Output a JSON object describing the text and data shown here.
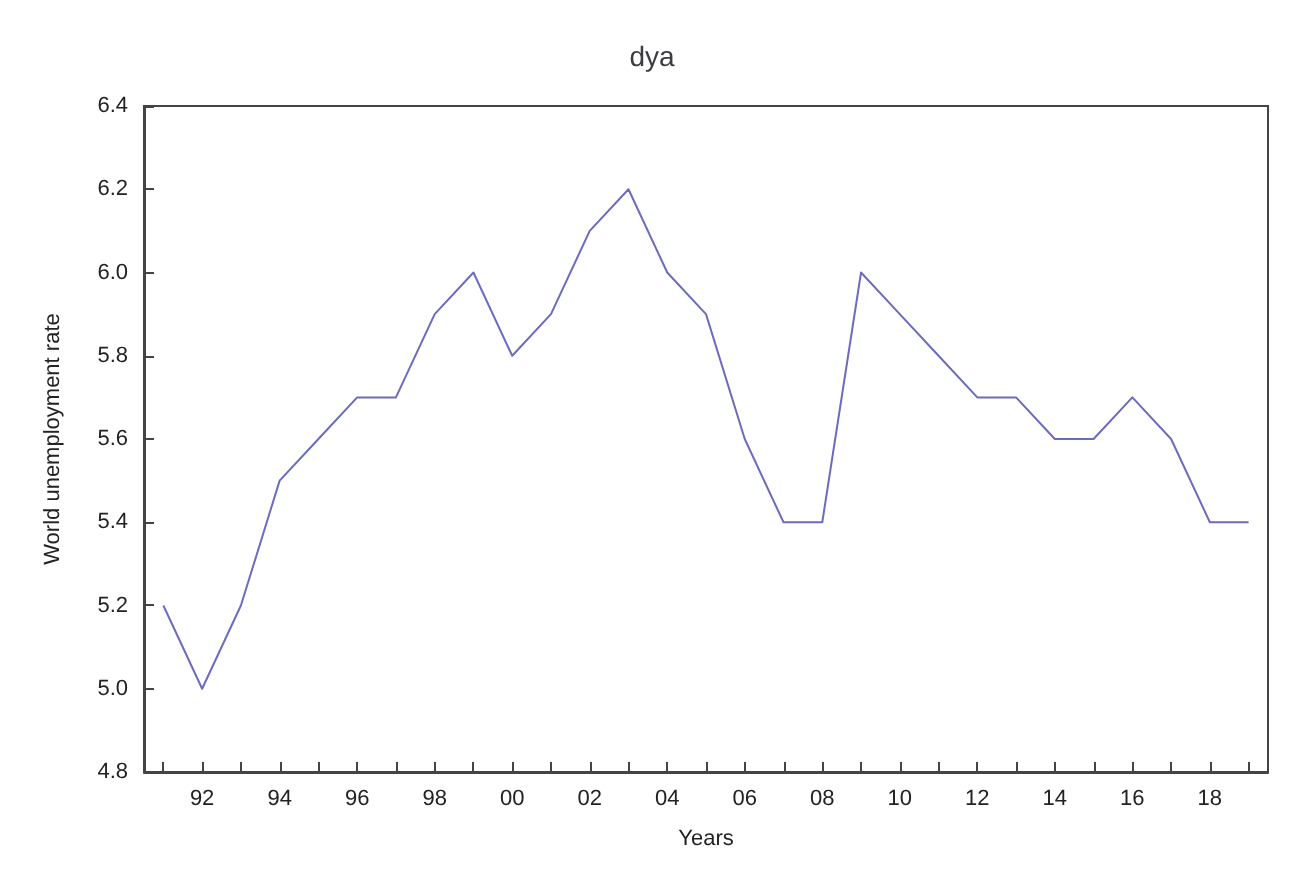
{
  "chart_data": {
    "type": "line",
    "title": "dya",
    "xlabel": "Years",
    "ylabel": "World unemployment rate",
    "categories": [
      null,
      "92",
      null,
      "94",
      null,
      "96",
      null,
      "98",
      null,
      "00",
      null,
      "02",
      null,
      "04",
      null,
      "06",
      null,
      "08",
      null,
      "10",
      null,
      "12",
      null,
      "14",
      null,
      "16",
      null,
      "18",
      null
    ],
    "series": [
      {
        "color": "#6b6bbf",
        "values": [
          5.2,
          5.0,
          5.2,
          5.5,
          5.6,
          5.7,
          5.7,
          5.9,
          6.0,
          5.8,
          5.9,
          6.1,
          6.2,
          6.0,
          5.9,
          5.6,
          5.4,
          5.4,
          6.0,
          5.9,
          5.8,
          5.7,
          5.7,
          5.6,
          5.6,
          5.7,
          5.6,
          5.4,
          5.4
        ]
      }
    ],
    "ylim": [
      4.8,
      6.4
    ],
    "yticks": [
      {
        "value": 4.8,
        "label": "4.8"
      },
      {
        "value": 5.0,
        "label": "5.0"
      },
      {
        "value": 5.2,
        "label": "5.2"
      },
      {
        "value": 5.4,
        "label": "5.4"
      },
      {
        "value": 5.6,
        "label": "5.6"
      },
      {
        "value": 5.8,
        "label": "5.8"
      },
      {
        "value": 6.0,
        "label": "6.0"
      },
      {
        "value": 6.2,
        "label": "6.2"
      },
      {
        "value": 6.4,
        "label": "6.4"
      }
    ],
    "marker": "none",
    "line_style": "solid"
  }
}
